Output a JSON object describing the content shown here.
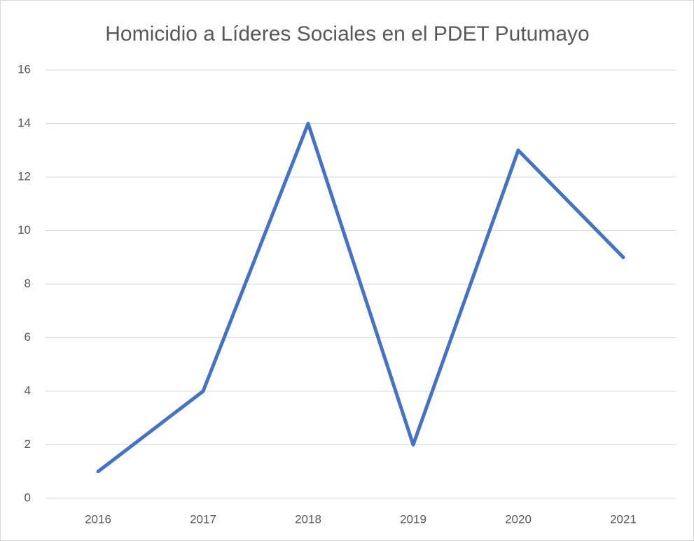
{
  "chart_data": {
    "type": "line",
    "title": "Homicidio a Líderes Sociales en el PDET Putumayo",
    "categories": [
      "2016",
      "2017",
      "2018",
      "2019",
      "2020",
      "2021"
    ],
    "values": [
      1,
      4,
      14,
      2,
      13,
      9
    ],
    "color": "#4472c4",
    "ylim": [
      0,
      16
    ],
    "yticks": [
      0,
      2,
      4,
      6,
      8,
      10,
      12,
      14,
      16
    ],
    "grid": true
  }
}
